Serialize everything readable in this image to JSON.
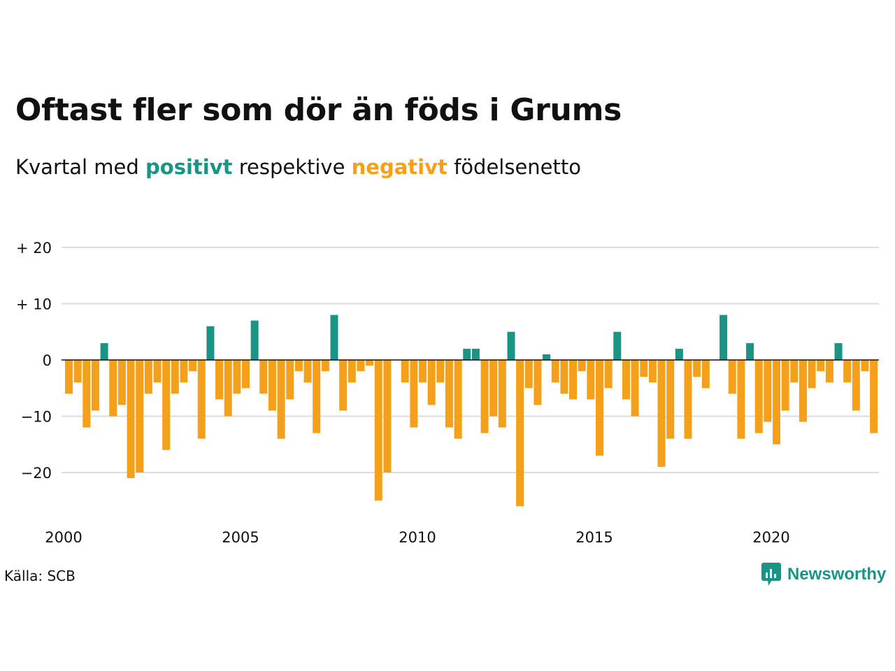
{
  "title": "Oftast fler som dör än föds i Grums",
  "subtitle": {
    "prefix": "Kvartal med ",
    "positive_word": "positivt",
    "middle": " respektive ",
    "negative_word": "negativt",
    "suffix": " födelsenetto"
  },
  "source": "Källa: SCB",
  "brand": {
    "name": "Newsworthy",
    "icon": "newsworthy-logo-icon"
  },
  "colors": {
    "positive": "#1a9484",
    "negative": "#f5a01a",
    "grid": "#dddddd",
    "zero": "#111111"
  },
  "chart_data": {
    "type": "bar",
    "title": "Oftast fler som dör än föds i Grums",
    "subtitle": "Kvartal med positivt respektive negativt födelsenetto",
    "x_start": "2000 Q1",
    "x_ticks": [
      "2000",
      "2005",
      "2010",
      "2015",
      "2020"
    ],
    "y_ticks": [
      20,
      10,
      0,
      -10,
      -20
    ],
    "y_tick_labels": [
      "+ 20",
      "+ 10",
      "0",
      "−10",
      "−20"
    ],
    "ylim": [
      -28,
      20
    ],
    "grid": true,
    "values": [
      -6,
      -4,
      -12,
      -9,
      3,
      -10,
      -8,
      -21,
      -20,
      -6,
      -4,
      -16,
      -6,
      -4,
      -2,
      -14,
      6,
      -7,
      -10,
      -6,
      -5,
      7,
      -6,
      -9,
      -14,
      -7,
      -2,
      -4,
      -13,
      -2,
      8,
      -9,
      -4,
      -2,
      -1,
      -25,
      -20,
      0,
      -4,
      -12,
      -4,
      -8,
      -4,
      -12,
      -14,
      2,
      2,
      -13,
      -10,
      -12,
      5,
      -26,
      -5,
      -8,
      1,
      -4,
      -6,
      -7,
      -2,
      -7,
      -17,
      -5,
      5,
      -7,
      -10,
      -3,
      -4,
      -19,
      -14,
      2,
      -14,
      -3,
      -5,
      0,
      8,
      -6,
      -14,
      3,
      -13,
      -11,
      -15,
      -9,
      -4,
      -11,
      -5,
      -2,
      -4,
      3,
      -4,
      -9,
      -2,
      -13
    ]
  }
}
